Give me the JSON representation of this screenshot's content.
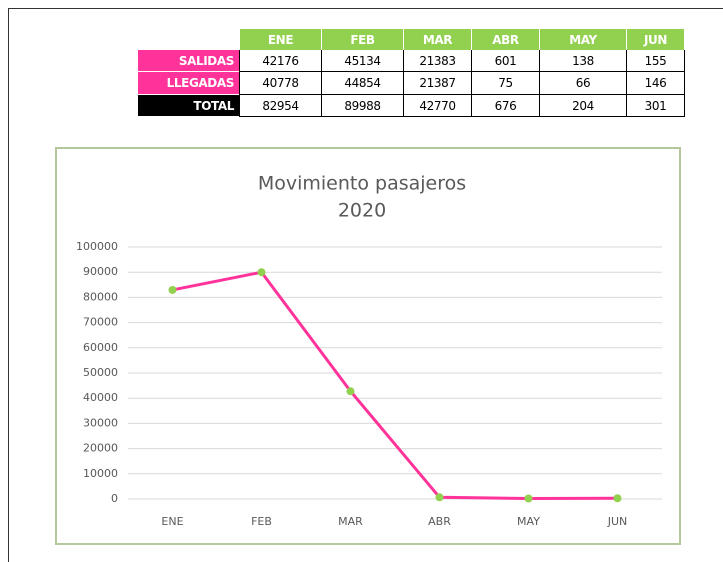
{
  "table": {
    "header": [
      "ENE",
      "FEB",
      "MAR",
      "ABR",
      "MAY",
      "JUN"
    ],
    "rows": [
      [
        "SALIDAS",
        42176,
        45134,
        21383,
        601,
        138,
        155
      ],
      [
        "LLEGADAS",
        40778,
        44854,
        21387,
        75,
        66,
        146
      ],
      [
        "TOTAL",
        82954,
        89988,
        42770,
        676,
        204,
        301
      ]
    ]
  },
  "chart_data": {
    "type": "line",
    "title": "Movimiento pasajeros",
    "subtitle": "2020",
    "categories": [
      "ENE",
      "FEB",
      "MAR",
      "ABR",
      "MAY",
      "JUN"
    ],
    "values": [
      82954,
      89988,
      42770,
      676,
      204,
      301
    ],
    "color": "#ff3399",
    "marker_color": "#92d050",
    "ylim": [
      0,
      100000
    ],
    "yticks": [
      0,
      10000,
      20000,
      30000,
      40000,
      50000,
      60000,
      70000,
      80000,
      90000,
      100000
    ],
    "grid": true
  }
}
